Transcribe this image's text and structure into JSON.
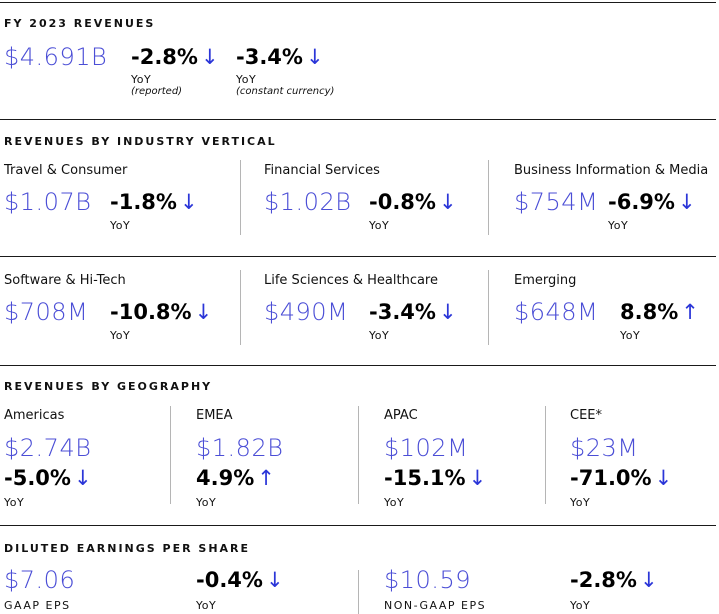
{
  "fy": {
    "title": "FY 2023 REVENUES",
    "value": "$4.691B",
    "reported": {
      "pct": "-2.8%",
      "arrow": "↓",
      "label": "YoY",
      "note": "(reported)"
    },
    "constant": {
      "pct": "-3.4%",
      "arrow": "↓",
      "label": "YoY",
      "note": "(constant currency)"
    }
  },
  "vertical": {
    "title": "REVENUES BY INDUSTRY VERTICAL",
    "items": [
      {
        "name": "Travel & Consumer",
        "value": "$1.07B",
        "pct": "-1.8%",
        "arrow": "↓",
        "yoy": "YoY"
      },
      {
        "name": "Financial Services",
        "value": "$1.02B",
        "pct": "-0.8%",
        "arrow": "↓",
        "yoy": "YoY"
      },
      {
        "name": "Business Information & Media",
        "value": "$754M",
        "pct": "-6.9%",
        "arrow": "↓",
        "yoy": "YoY"
      },
      {
        "name": "Software & Hi-Tech",
        "value": "$708M",
        "pct": "-10.8%",
        "arrow": "↓",
        "yoy": "YoY"
      },
      {
        "name": "Life Sciences & Healthcare",
        "value": "$490M",
        "pct": "-3.4%",
        "arrow": "↓",
        "yoy": "YoY"
      },
      {
        "name": "Emerging",
        "value": "$648M",
        "pct": "8.8%",
        "arrow": "↑",
        "yoy": "YoY"
      }
    ]
  },
  "geography": {
    "title": "REVENUES BY GEOGRAPHY",
    "items": [
      {
        "name": "Americas",
        "value": "$2.74B",
        "pct": "-5.0%",
        "arrow": "↓",
        "yoy": "YoY"
      },
      {
        "name": "EMEA",
        "value": "$1.82B",
        "pct": "4.9%",
        "arrow": "↑",
        "yoy": "YoY"
      },
      {
        "name": "APAC",
        "value": "$102M",
        "pct": "-15.1%",
        "arrow": "↓",
        "yoy": "YoY"
      },
      {
        "name": "CEE*",
        "value": "$23M",
        "pct": "-71.0%",
        "arrow": "↓",
        "yoy": "YoY"
      }
    ]
  },
  "eps": {
    "title": "DILUTED EARNINGS PER SHARE",
    "gaap": {
      "value": "$7.06",
      "label": "GAAP EPS",
      "pct": "-0.4%",
      "arrow": "↓",
      "yoy": "YoY"
    },
    "nongaap": {
      "value": "$10.59",
      "label": "NON-GAAP EPS",
      "pct": "-2.8%",
      "arrow": "↓",
      "yoy": "YoY"
    }
  }
}
